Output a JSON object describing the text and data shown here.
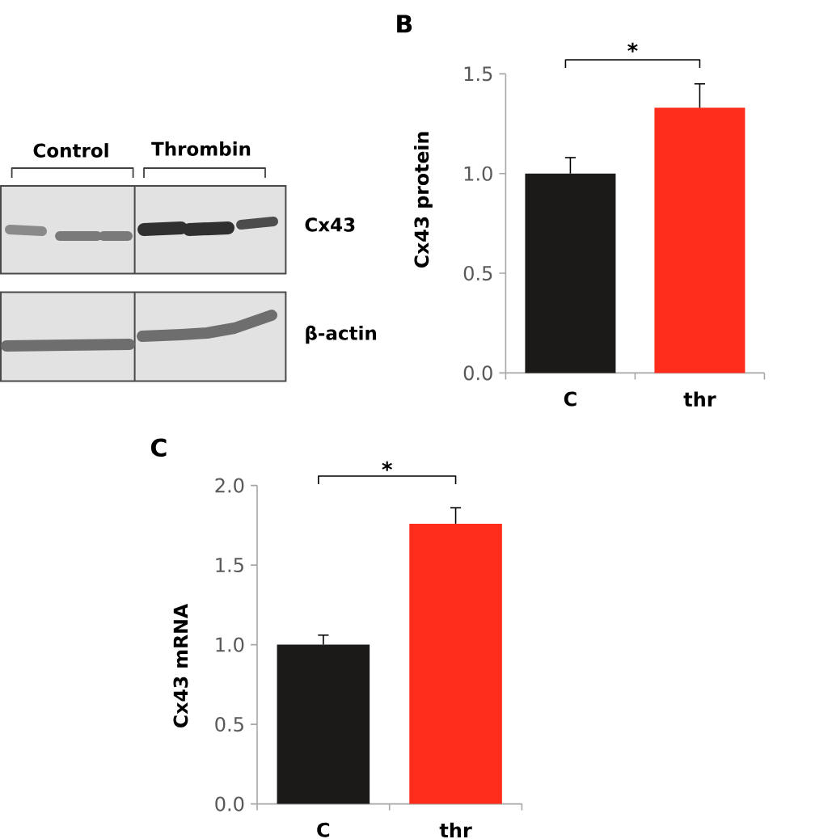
{
  "chart_data": [
    {
      "type": "other",
      "annotations": [
        "Control",
        "Thrombin",
        "Cx43",
        "β-actin"
      ]
    },
    {
      "type": "bar",
      "title": "B",
      "ylabel": "Cx43 protein",
      "categories": [
        "C",
        "thr"
      ],
      "values": [
        1.0,
        1.33
      ],
      "colors": [
        "#1c1a19",
        "#fe2c1a"
      ],
      "errors": [
        [
          1.0,
          1.08
        ],
        [
          1.33,
          1.45
        ]
      ],
      "ylim": [
        0,
        1.5
      ],
      "yticks": [
        {
          "value": 0,
          "label": "0.0"
        },
        {
          "value": 0.5,
          "label": "0.5"
        },
        {
          "value": 1,
          "label": "1.0"
        },
        {
          "value": 1.5,
          "label": "1.5"
        }
      ],
      "annotations": [
        "*"
      ]
    },
    {
      "type": "bar",
      "title": "C",
      "ylabel": "Cx43 mRNA",
      "categories": [
        "C",
        "thr"
      ],
      "values": [
        1.0,
        1.76
      ],
      "colors": [
        "#1c1a19",
        "#fe2c1a"
      ],
      "errors": [
        [
          1.0,
          1.06
        ],
        [
          1.76,
          1.86
        ]
      ],
      "ylim": [
        0,
        2
      ],
      "yticks": [
        {
          "value": 0,
          "label": "0.0"
        },
        {
          "value": 0.5,
          "label": "0.5"
        },
        {
          "value": 1,
          "label": "1.0"
        },
        {
          "value": 1.5,
          "label": "1.5"
        },
        {
          "value": 2,
          "label": "2.0"
        }
      ],
      "annotations": [
        "*"
      ]
    }
  ]
}
